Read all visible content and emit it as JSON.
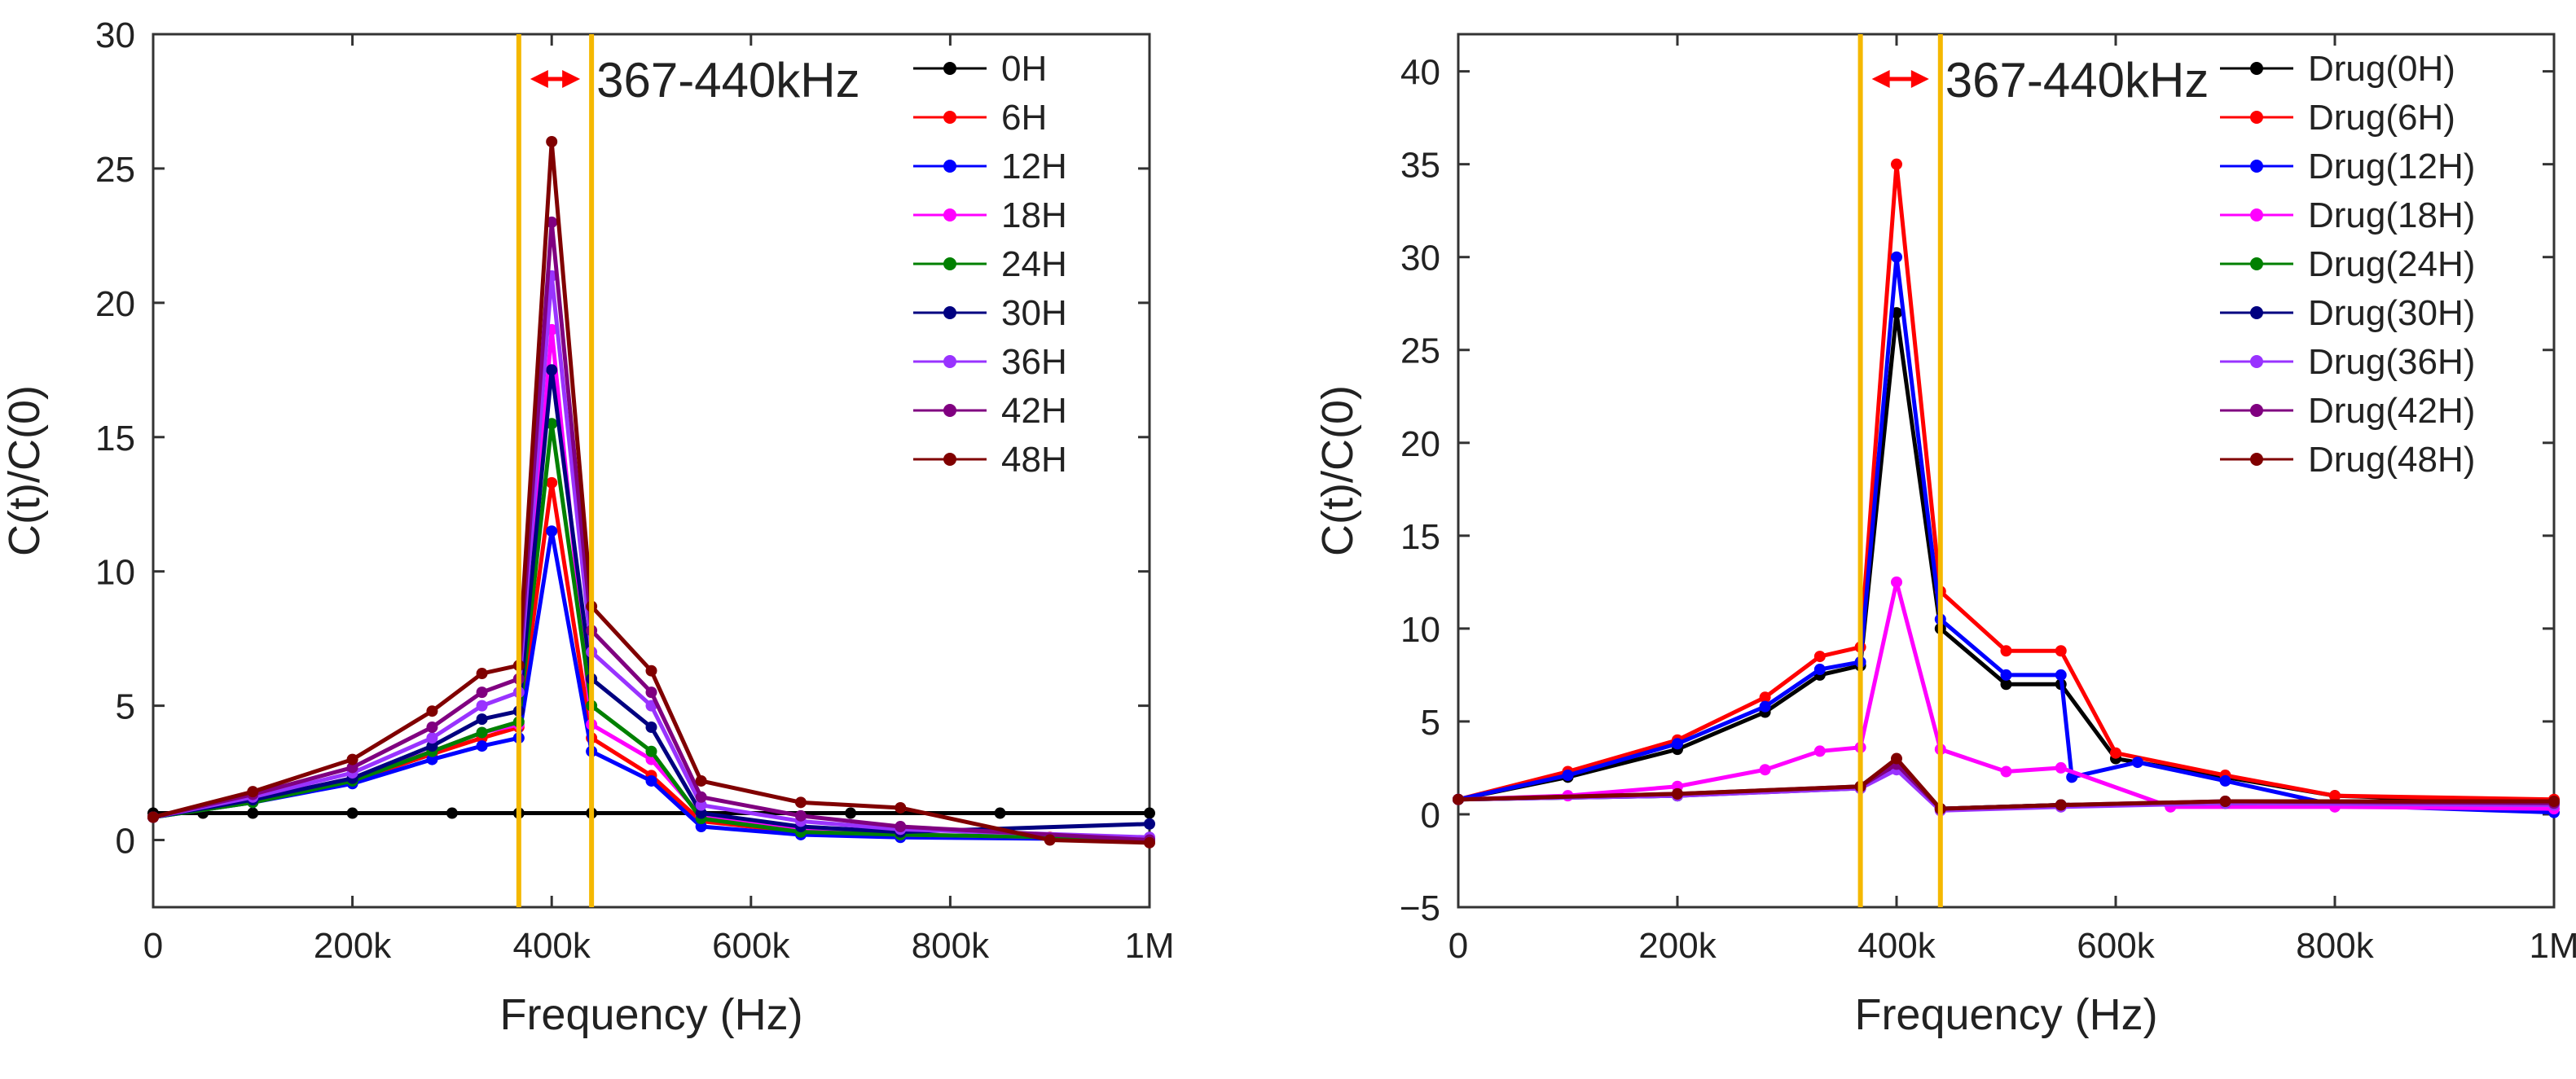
{
  "chart_data": [
    {
      "type": "scatter",
      "title": "",
      "xlabel": "Frequency (Hz)",
      "ylabel": "C(t)/C(0)",
      "xlim": [
        0,
        1000000
      ],
      "ylim": [
        -2.5,
        30
      ],
      "xticks": [
        0,
        200000,
        400000,
        600000,
        800000,
        1000000
      ],
      "xtick_labels": [
        "0",
        "200k",
        "400k",
        "600k",
        "800k",
        "1M"
      ],
      "yticks": [
        0,
        5,
        10,
        15,
        20,
        25,
        30
      ],
      "ytick_labels": [
        "0",
        "5",
        "10",
        "15",
        "20",
        "25",
        "30"
      ],
      "vlines": [
        367000,
        440000
      ],
      "annotation": "367-440kHz",
      "legend_position": "top-right",
      "series": [
        {
          "name": "0H",
          "color": "#000000",
          "points": [
            [
              0,
              1.0
            ],
            [
              50000,
              1.0
            ],
            [
              100000,
              1.0
            ],
            [
              200000,
              1.0
            ],
            [
              300000,
              1.0
            ],
            [
              367000,
              1.0
            ],
            [
              440000,
              1.0
            ],
            [
              550000,
              1.0
            ],
            [
              700000,
              1.0
            ],
            [
              850000,
              1.0
            ],
            [
              1000000,
              1.0
            ]
          ]
        },
        {
          "name": "6H",
          "color": "#ff0000",
          "points": [
            [
              0,
              0.85
            ],
            [
              100000,
              1.5
            ],
            [
              200000,
              2.2
            ],
            [
              280000,
              3.2
            ],
            [
              330000,
              3.8
            ],
            [
              367000,
              4.2
            ],
            [
              400000,
              13.3
            ],
            [
              440000,
              3.8
            ],
            [
              500000,
              2.4
            ],
            [
              550000,
              0.7
            ],
            [
              650000,
              0.3
            ],
            [
              750000,
              0.2
            ],
            [
              900000,
              0.1
            ],
            [
              1000000,
              0.05
            ]
          ]
        },
        {
          "name": "12H",
          "color": "#0000ff",
          "points": [
            [
              0,
              0.85
            ],
            [
              100000,
              1.4
            ],
            [
              200000,
              2.1
            ],
            [
              280000,
              3.0
            ],
            [
              330000,
              3.5
            ],
            [
              367000,
              3.8
            ],
            [
              400000,
              11.5
            ],
            [
              440000,
              3.3
            ],
            [
              500000,
              2.2
            ],
            [
              550000,
              0.5
            ],
            [
              650000,
              0.2
            ],
            [
              750000,
              0.1
            ],
            [
              900000,
              0.05
            ],
            [
              1000000,
              0.0
            ]
          ]
        },
        {
          "name": "18H",
          "color": "#ff00ff",
          "points": [
            [
              0,
              0.85
            ],
            [
              100000,
              1.5
            ],
            [
              200000,
              2.3
            ],
            [
              280000,
              3.3
            ],
            [
              330000,
              4.0
            ],
            [
              367000,
              4.3
            ],
            [
              400000,
              19.0
            ],
            [
              440000,
              4.3
            ],
            [
              500000,
              3.0
            ],
            [
              550000,
              0.9
            ],
            [
              650000,
              0.4
            ],
            [
              750000,
              0.2
            ],
            [
              1000000,
              0.05
            ]
          ]
        },
        {
          "name": "24H",
          "color": "#008000",
          "points": [
            [
              0,
              0.85
            ],
            [
              100000,
              1.4
            ],
            [
              200000,
              2.2
            ],
            [
              280000,
              3.3
            ],
            [
              330000,
              4.0
            ],
            [
              367000,
              4.4
            ],
            [
              400000,
              15.5
            ],
            [
              440000,
              5.0
            ],
            [
              500000,
              3.3
            ],
            [
              550000,
              0.8
            ],
            [
              650000,
              0.3
            ],
            [
              750000,
              0.2
            ],
            [
              1000000,
              0.05
            ]
          ]
        },
        {
          "name": "30H",
          "color": "#000080",
          "points": [
            [
              0,
              0.85
            ],
            [
              100000,
              1.5
            ],
            [
              200000,
              2.3
            ],
            [
              280000,
              3.5
            ],
            [
              330000,
              4.5
            ],
            [
              367000,
              4.8
            ],
            [
              400000,
              17.5
            ],
            [
              440000,
              6.0
            ],
            [
              500000,
              4.2
            ],
            [
              550000,
              1.0
            ],
            [
              650000,
              0.5
            ],
            [
              750000,
              0.3
            ],
            [
              1000000,
              0.6
            ]
          ]
        },
        {
          "name": "36H",
          "color": "#9933ff",
          "points": [
            [
              0,
              0.85
            ],
            [
              100000,
              1.6
            ],
            [
              200000,
              2.5
            ],
            [
              280000,
              3.8
            ],
            [
              330000,
              5.0
            ],
            [
              367000,
              5.5
            ],
            [
              400000,
              21.0
            ],
            [
              440000,
              7.0
            ],
            [
              500000,
              5.0
            ],
            [
              550000,
              1.3
            ],
            [
              650000,
              0.7
            ],
            [
              750000,
              0.4
            ],
            [
              1000000,
              0.1
            ]
          ]
        },
        {
          "name": "42H",
          "color": "#800080",
          "points": [
            [
              0,
              0.85
            ],
            [
              100000,
              1.7
            ],
            [
              200000,
              2.7
            ],
            [
              280000,
              4.2
            ],
            [
              330000,
              5.5
            ],
            [
              367000,
              6.0
            ],
            [
              400000,
              23.0
            ],
            [
              440000,
              7.8
            ],
            [
              500000,
              5.5
            ],
            [
              550000,
              1.6
            ],
            [
              650000,
              0.9
            ],
            [
              750000,
              0.5
            ],
            [
              1000000,
              0.0
            ]
          ]
        },
        {
          "name": "48H",
          "color": "#800000",
          "points": [
            [
              0,
              0.85
            ],
            [
              100000,
              1.8
            ],
            [
              200000,
              3.0
            ],
            [
              280000,
              4.8
            ],
            [
              330000,
              6.2
            ],
            [
              367000,
              6.5
            ],
            [
              400000,
              26.0
            ],
            [
              440000,
              8.7
            ],
            [
              500000,
              6.3
            ],
            [
              550000,
              2.2
            ],
            [
              650000,
              1.4
            ],
            [
              750000,
              1.2
            ],
            [
              900000,
              0.0
            ],
            [
              1000000,
              -0.1
            ]
          ]
        }
      ]
    },
    {
      "type": "scatter",
      "title": "",
      "xlabel": "Frequency (Hz)",
      "ylabel": "C(t)/C(0)",
      "xlim": [
        0,
        1000000
      ],
      "ylim": [
        -5,
        42
      ],
      "xticks": [
        0,
        200000,
        400000,
        600000,
        800000,
        1000000
      ],
      "xtick_labels": [
        "0",
        "200k",
        "400k",
        "600k",
        "800k",
        "1M"
      ],
      "yticks": [
        -5,
        0,
        5,
        10,
        15,
        20,
        25,
        30,
        35,
        40
      ],
      "ytick_labels": [
        "−5",
        "0",
        "5",
        "10",
        "15",
        "20",
        "25",
        "30",
        "35",
        "40"
      ],
      "vlines": [
        367000,
        440000
      ],
      "annotation": "367-440kHz",
      "legend_position": "top-right",
      "series": [
        {
          "name": "Drug(0H)",
          "color": "#000000",
          "points": [
            [
              0,
              0.8
            ],
            [
              100000,
              2.0
            ],
            [
              200000,
              3.5
            ],
            [
              280000,
              5.5
            ],
            [
              330000,
              7.5
            ],
            [
              367000,
              8.0
            ],
            [
              400000,
              27.0
            ],
            [
              440000,
              10.0
            ],
            [
              500000,
              7.0
            ],
            [
              550000,
              7.0
            ],
            [
              600000,
              3.0
            ],
            [
              700000,
              2.0
            ],
            [
              800000,
              1.0
            ],
            [
              1000000,
              0.6
            ]
          ]
        },
        {
          "name": "Drug(6H)",
          "color": "#ff0000",
          "points": [
            [
              0,
              0.8
            ],
            [
              100000,
              2.3
            ],
            [
              200000,
              4.0
            ],
            [
              280000,
              6.3
            ],
            [
              330000,
              8.5
            ],
            [
              367000,
              9.0
            ],
            [
              400000,
              35.0
            ],
            [
              440000,
              12.0
            ],
            [
              500000,
              8.8
            ],
            [
              550000,
              8.8
            ],
            [
              600000,
              3.3
            ],
            [
              700000,
              2.1
            ],
            [
              800000,
              1.0
            ],
            [
              1000000,
              0.8
            ]
          ]
        },
        {
          "name": "Drug(12H)",
          "color": "#0000ff",
          "points": [
            [
              0,
              0.8
            ],
            [
              100000,
              2.1
            ],
            [
              200000,
              3.8
            ],
            [
              280000,
              5.8
            ],
            [
              330000,
              7.8
            ],
            [
              367000,
              8.2
            ],
            [
              400000,
              30.0
            ],
            [
              440000,
              10.5
            ],
            [
              500000,
              7.5
            ],
            [
              550000,
              7.5
            ],
            [
              560000,
              2.0
            ],
            [
              620000,
              2.8
            ],
            [
              700000,
              1.8
            ],
            [
              800000,
              0.5
            ],
            [
              1000000,
              0.1
            ]
          ]
        },
        {
          "name": "Drug(18H)",
          "color": "#ff00ff",
          "points": [
            [
              0,
              0.8
            ],
            [
              100000,
              1.0
            ],
            [
              200000,
              1.5
            ],
            [
              280000,
              2.4
            ],
            [
              330000,
              3.4
            ],
            [
              367000,
              3.6
            ],
            [
              400000,
              12.5
            ],
            [
              440000,
              3.5
            ],
            [
              500000,
              2.3
            ],
            [
              550000,
              2.5
            ],
            [
              650000,
              0.4
            ],
            [
              800000,
              0.4
            ],
            [
              1000000,
              0.3
            ]
          ]
        },
        {
          "name": "Drug(24H)",
          "color": "#008000",
          "points": [
            [
              0,
              0.8
            ],
            [
              200000,
              1.0
            ],
            [
              367000,
              1.5
            ],
            [
              400000,
              2.5
            ],
            [
              440000,
              0.3
            ],
            [
              550000,
              0.5
            ],
            [
              700000,
              0.6
            ],
            [
              1000000,
              0.6
            ]
          ]
        },
        {
          "name": "Drug(30H)",
          "color": "#000080",
          "points": [
            [
              0,
              0.8
            ],
            [
              200000,
              1.0
            ],
            [
              367000,
              1.4
            ],
            [
              400000,
              2.6
            ],
            [
              440000,
              0.3
            ],
            [
              550000,
              0.5
            ],
            [
              700000,
              0.6
            ],
            [
              1000000,
              0.6
            ]
          ]
        },
        {
          "name": "Drug(36H)",
          "color": "#9933ff",
          "points": [
            [
              0,
              0.8
            ],
            [
              200000,
              1.0
            ],
            [
              367000,
              1.4
            ],
            [
              400000,
              2.4
            ],
            [
              440000,
              0.2
            ],
            [
              550000,
              0.4
            ],
            [
              700000,
              0.6
            ],
            [
              1000000,
              0.5
            ]
          ]
        },
        {
          "name": "Drug(42H)",
          "color": "#800080",
          "points": [
            [
              0,
              0.8
            ],
            [
              200000,
              1.1
            ],
            [
              367000,
              1.5
            ],
            [
              400000,
              2.7
            ],
            [
              440000,
              0.3
            ],
            [
              550000,
              0.5
            ],
            [
              700000,
              0.7
            ],
            [
              1000000,
              0.6
            ]
          ]
        },
        {
          "name": "Drug(48H)",
          "color": "#800000",
          "points": [
            [
              0,
              0.8
            ],
            [
              200000,
              1.1
            ],
            [
              367000,
              1.5
            ],
            [
              400000,
              3.0
            ],
            [
              440000,
              0.3
            ],
            [
              550000,
              0.5
            ],
            [
              700000,
              0.7
            ],
            [
              1000000,
              0.7
            ]
          ]
        }
      ]
    }
  ],
  "colors": {
    "vline": "#f5b800",
    "arrow": "#ff0000",
    "axis": "#333333"
  }
}
